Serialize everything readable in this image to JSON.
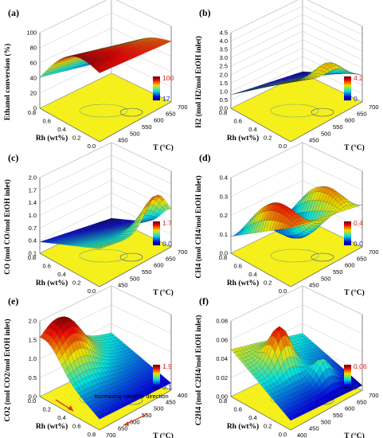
{
  "colors": {
    "floor": "#f5ef1c",
    "cb_max": "#e02020",
    "cb_min": "#2030c0",
    "mesh_line": "#1a1a1a"
  },
  "chart_data": [
    {
      "panel": "(a)",
      "type": "surface",
      "zlabel": "Ethanol conversion (%)",
      "xlabel": "Rh (wt%)",
      "ylabel": "T (°C)",
      "z_ticks": [
        "0",
        "20",
        "40",
        "60",
        "80",
        "100"
      ],
      "rh_ticks": [
        "0.8",
        "0.6",
        "0.4",
        "0.2",
        "0.0"
      ],
      "t_ticks": [
        "400",
        "450",
        "500",
        "550",
        "600",
        "650",
        "700"
      ],
      "colorbar": {
        "max": "100",
        "min": "17"
      },
      "rh_range": [
        0,
        0.8
      ],
      "t_range": [
        400,
        700
      ],
      "z_range": [
        0,
        110
      ],
      "corner_z": {
        "rh0_t400": 20,
        "rh0_t700": 88,
        "rh08_t400": 45,
        "rh08_t700": 100,
        "peak": 100
      }
    },
    {
      "panel": "(b)",
      "type": "surface",
      "zlabel": "H2 (mol H2/mol EtOH inlet)",
      "xlabel": "Rh (wt%)",
      "ylabel": "T (°C)",
      "z_ticks": [
        "0.0",
        "0.5",
        "1.0",
        "1.5",
        "2.0",
        "2.5",
        "3.0",
        "3.5",
        "4.0",
        "4.5"
      ],
      "rh_ticks": [
        "0.8",
        "0.6",
        "0.4",
        "0.2",
        "0.0"
      ],
      "t_ticks": [
        "400",
        "450",
        "500",
        "550",
        "600",
        "650",
        "700"
      ],
      "colorbar": {
        "max": "4.2",
        "min": "0"
      },
      "rh_range": [
        0,
        0.8
      ],
      "t_range": [
        400,
        700
      ],
      "z_range": [
        0,
        4.5
      ],
      "corner_z": {
        "rh0_t400": 0.1,
        "rh0_t700": 1.6,
        "rh08_t400": 0.8,
        "rh08_t700": 3.6,
        "peak": 4.2
      }
    },
    {
      "panel": "(c)",
      "type": "surface",
      "zlabel": "CO (mol CO/mol EtOH inlet)",
      "xlabel": "Rh (wt%)",
      "ylabel": "T (°C)",
      "z_ticks": [
        "0.1",
        "0.4",
        "0.7",
        "1.0",
        "1.4",
        "1.7",
        "2.0"
      ],
      "rh_ticks": [
        "0.8",
        "0.6",
        "0.4",
        "0.2",
        "0.0"
      ],
      "t_ticks": [
        "400",
        "450",
        "500",
        "550",
        "600",
        "650",
        "700"
      ],
      "colorbar": {
        "max": "1.7",
        "min": "0.0"
      },
      "rh_range": [
        0,
        0.8
      ],
      "t_range": [
        400,
        700
      ],
      "z_range": [
        0,
        2.0
      ],
      "corner_z": {
        "rh0_t400": 0.0,
        "rh0_t700": 0.6,
        "rh08_t400": 0.3,
        "rh08_t700": 1.0,
        "peak": 1.7
      }
    },
    {
      "panel": "(d)",
      "type": "surface",
      "zlabel": "CH4 (mol CH4/mol EtOH inlet)",
      "xlabel": "Rh (wt%)",
      "ylabel": "T (°C)",
      "z_ticks": [
        "0.0",
        "0.1",
        "0.2",
        "0.3",
        "0.4"
      ],
      "rh_ticks": [
        "0.8",
        "0.6",
        "0.4",
        "0.2",
        "0.0"
      ],
      "t_ticks": [
        "400",
        "450",
        "500",
        "550",
        "600",
        "650",
        "700"
      ],
      "colorbar": {
        "max": "0.4",
        "min": "0.0"
      },
      "rh_range": [
        0,
        0.8
      ],
      "t_range": [
        400,
        700
      ],
      "z_range": [
        0,
        0.45
      ],
      "corner_z": {
        "rh0_t400": 0.05,
        "rh0_t700": 0.25,
        "rh08_t400": 0.1,
        "rh08_t700": 0.35,
        "peak": 0.4
      }
    },
    {
      "panel": "(e)",
      "type": "surface",
      "zlabel": "CO2 (mol CO2/mol EtOH inlet)",
      "xlabel": "Rh (wt%)",
      "ylabel": "T (°C)",
      "z_ticks": [
        "0.0",
        "0.5",
        "1.0",
        "1.5",
        "2.0"
      ],
      "rh_ticks": [
        "0.0",
        "0.2",
        "0.4",
        "0.6",
        "0.8"
      ],
      "t_ticks": [
        "700",
        "650",
        "600",
        "550",
        "500",
        "450",
        "400"
      ],
      "colorbar": {
        "max": "1.9",
        "min": "0.1"
      },
      "annotation": "Increasing variable direction",
      "rh_range": [
        0,
        0.8
      ],
      "t_range": [
        400,
        700
      ],
      "z_range": [
        0,
        2.1
      ],
      "corner_z": {
        "rh0_t400": 0.8,
        "rh0_t700": 0.2,
        "rh08_t400": 1.3,
        "rh08_t700": 0.3,
        "peak": 1.9
      }
    },
    {
      "panel": "(f)",
      "type": "surface",
      "zlabel": "C2H4 (mol C2H4/mol EtOH inlet)",
      "xlabel": "Rh (wt%)",
      "ylabel": "T (°C)",
      "z_ticks": [
        "0.00",
        "0.02",
        "0.04",
        "0.06",
        "0.08"
      ],
      "rh_ticks": [
        "0.8",
        "0.6",
        "0.4",
        "0.2",
        "0.0"
      ],
      "t_ticks": [
        "400",
        "450",
        "500",
        "550",
        "600",
        "650",
        "700"
      ],
      "colorbar": {
        "max": "0.06",
        "min": "0"
      },
      "rh_range": [
        0,
        0.8
      ],
      "t_range": [
        400,
        700
      ],
      "z_range": [
        0,
        0.08
      ],
      "corner_z": {
        "rh0_t400": 0.03,
        "rh0_t700": 0.005,
        "rh08_t400": 0.05,
        "rh08_t700": 0.01,
        "peak": 0.06
      }
    }
  ]
}
